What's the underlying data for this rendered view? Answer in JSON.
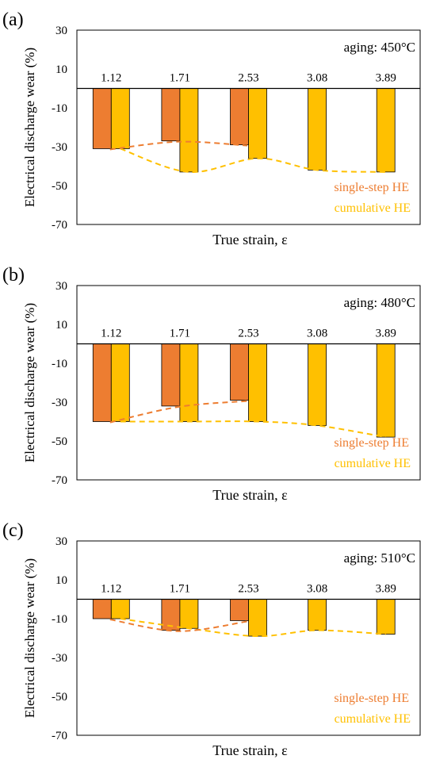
{
  "colors": {
    "single": "#ED7D31",
    "cumulative": "#FFC000",
    "bar_outline": "#000000",
    "axis": "#000000"
  },
  "chart_data": [
    {
      "type": "bar",
      "panel_label": "(a)",
      "annotation": "aging: 450°C",
      "xlabel": "True strain, ε",
      "ylabel": "Electrical discharge wear (%)",
      "ylim": [
        -70,
        30
      ],
      "yticks": [
        "30",
        "10",
        "-10",
        "-30",
        "-50",
        "-70"
      ],
      "grid": false,
      "categories": [
        "1.12",
        "1.71",
        "2.53",
        "3.08",
        "3.89"
      ],
      "series": [
        {
          "name": "single-step HE",
          "color": "#ED7D31",
          "values": [
            -31,
            -27,
            -29,
            null,
            null
          ],
          "trend": "single-step"
        },
        {
          "name": "cumulative HE",
          "color": "#FFC000",
          "values": [
            -31,
            -43,
            -36,
            -42,
            -43
          ],
          "trend": "cumulative"
        }
      ],
      "legend_position": "bottom-right"
    },
    {
      "type": "bar",
      "panel_label": "(b)",
      "annotation": "aging: 480°C",
      "xlabel": "True strain, ε",
      "ylabel": "Electrical discharge wear (%)",
      "ylim": [
        -70,
        30
      ],
      "yticks": [
        "30",
        "10",
        "-10",
        "-30",
        "-50",
        "-70"
      ],
      "grid": false,
      "categories": [
        "1.12",
        "1.71",
        "2.53",
        "3.08",
        "3.89"
      ],
      "series": [
        {
          "name": "single-step HE",
          "color": "#ED7D31",
          "values": [
            -40,
            -32,
            -29,
            null,
            null
          ],
          "trend": "single-step"
        },
        {
          "name": "cumulative HE",
          "color": "#FFC000",
          "values": [
            -40,
            -40,
            -40,
            -42,
            -48
          ],
          "trend": "cumulative"
        }
      ],
      "legend_position": "bottom-right"
    },
    {
      "type": "bar",
      "panel_label": "(c)",
      "annotation": "aging: 510°C",
      "xlabel": "True strain, ε",
      "ylabel": "Electrical discharge wear (%)",
      "ylim": [
        -70,
        30
      ],
      "yticks": [
        "30",
        "10",
        "-10",
        "-30",
        "-50",
        "-70"
      ],
      "grid": false,
      "categories": [
        "1.12",
        "1.71",
        "2.53",
        "3.08",
        "3.89"
      ],
      "series": [
        {
          "name": "single-step HE",
          "color": "#ED7D31",
          "values": [
            -10,
            -16,
            -11,
            null,
            null
          ],
          "trend": "single-step"
        },
        {
          "name": "cumulative HE",
          "color": "#FFC000",
          "values": [
            -10,
            -15,
            -19,
            -16,
            -18
          ],
          "trend": "cumulative"
        }
      ],
      "legend_position": "bottom-right"
    }
  ]
}
